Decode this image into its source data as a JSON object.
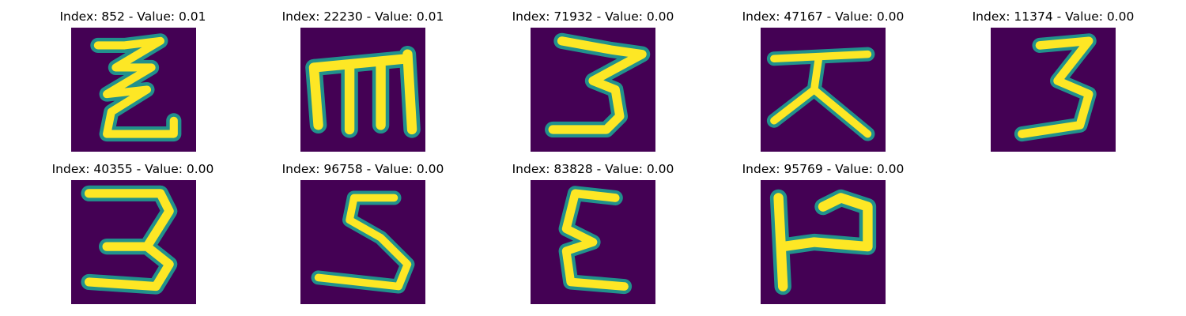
{
  "colors": {
    "background": "#440154",
    "glyph_core": "#fde725",
    "glyph_mid": "#5ec962",
    "glyph_edge": "#21918c"
  },
  "panels": [
    {
      "title": "Index: 852 - Value: 0.01"
    },
    {
      "title": "Index: 22230 - Value: 0.01"
    },
    {
      "title": "Index: 71932 - Value: 0.00"
    },
    {
      "title": "Index: 47167 - Value: 0.00"
    },
    {
      "title": "Index: 11374 - Value: 0.00"
    },
    {
      "title": "Index: 40355 - Value: 0.00"
    },
    {
      "title": "Index: 96758 - Value: 0.00"
    },
    {
      "title": "Index: 83828 - Value: 0.00"
    },
    {
      "title": "Index: 95769 - Value: 0.00"
    }
  ]
}
